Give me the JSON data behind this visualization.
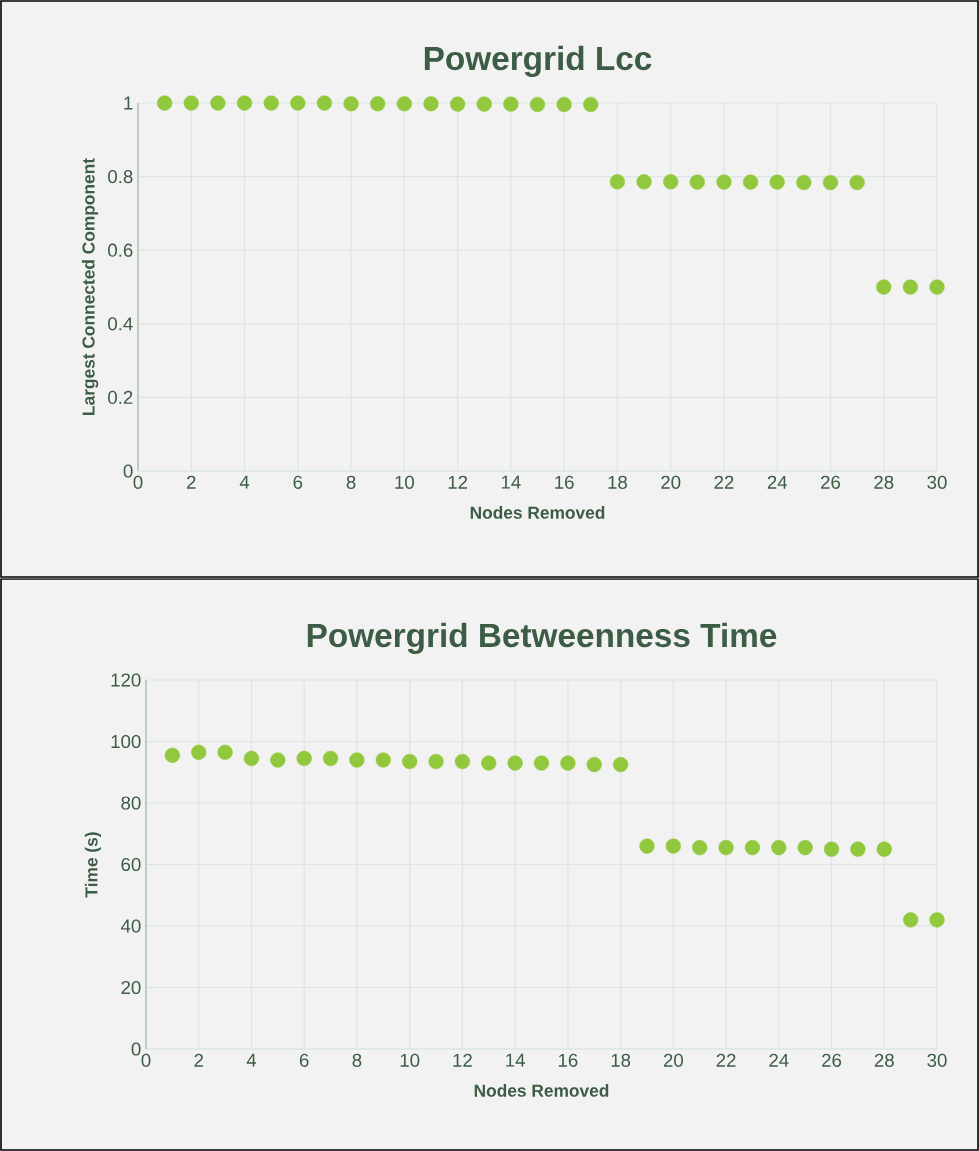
{
  "chart_data": [
    {
      "type": "scatter",
      "title": "Powergrid Lcc",
      "xlabel": "Nodes Removed",
      "ylabel": "Largest Connected Component",
      "x": [
        1,
        2,
        3,
        4,
        5,
        6,
        7,
        8,
        9,
        10,
        11,
        12,
        13,
        14,
        15,
        16,
        17,
        18,
        19,
        20,
        21,
        22,
        23,
        24,
        25,
        26,
        27,
        28,
        29,
        30
      ],
      "values": [
        1,
        1,
        1,
        1,
        1,
        1,
        1,
        0.998,
        0.998,
        0.998,
        0.998,
        0.997,
        0.997,
        0.997,
        0.996,
        0.996,
        0.996,
        0.786,
        0.786,
        0.786,
        0.785,
        0.785,
        0.785,
        0.785,
        0.784,
        0.784,
        0.784,
        0.5,
        0.5,
        0.5
      ],
      "color": "#92c83e",
      "xlim": [
        0,
        30
      ],
      "xticks": [
        0,
        2,
        4,
        6,
        8,
        10,
        12,
        14,
        16,
        18,
        20,
        22,
        24,
        26,
        28,
        30
      ],
      "ylim": [
        0,
        1
      ],
      "yticks": [
        0,
        0.2,
        0.4,
        0.6,
        0.8,
        1
      ],
      "grid": true
    },
    {
      "type": "scatter",
      "title": "Powergrid Betweenness Time",
      "xlabel": "Nodes Removed",
      "ylabel": "Time (s)",
      "x": [
        1,
        2,
        3,
        4,
        5,
        6,
        7,
        8,
        9,
        10,
        11,
        12,
        13,
        14,
        15,
        16,
        17,
        18,
        19,
        20,
        21,
        22,
        23,
        24,
        25,
        26,
        27,
        28,
        29,
        30
      ],
      "values": [
        95.5,
        96.5,
        96.5,
        94.5,
        94,
        94.5,
        94.5,
        94,
        94,
        93.5,
        93.5,
        93.5,
        93,
        93,
        93,
        93,
        92.5,
        92.5,
        66,
        66,
        65.5,
        65.5,
        65.5,
        65.5,
        65.5,
        65,
        65,
        65,
        42,
        42
      ],
      "color": "#92c83e",
      "xlim": [
        0,
        30
      ],
      "xticks": [
        0,
        2,
        4,
        6,
        8,
        10,
        12,
        14,
        16,
        18,
        20,
        22,
        24,
        26,
        28,
        30
      ],
      "ylim": [
        0,
        120
      ],
      "yticks": [
        0,
        20,
        40,
        60,
        80,
        100,
        120
      ],
      "grid": true
    }
  ]
}
